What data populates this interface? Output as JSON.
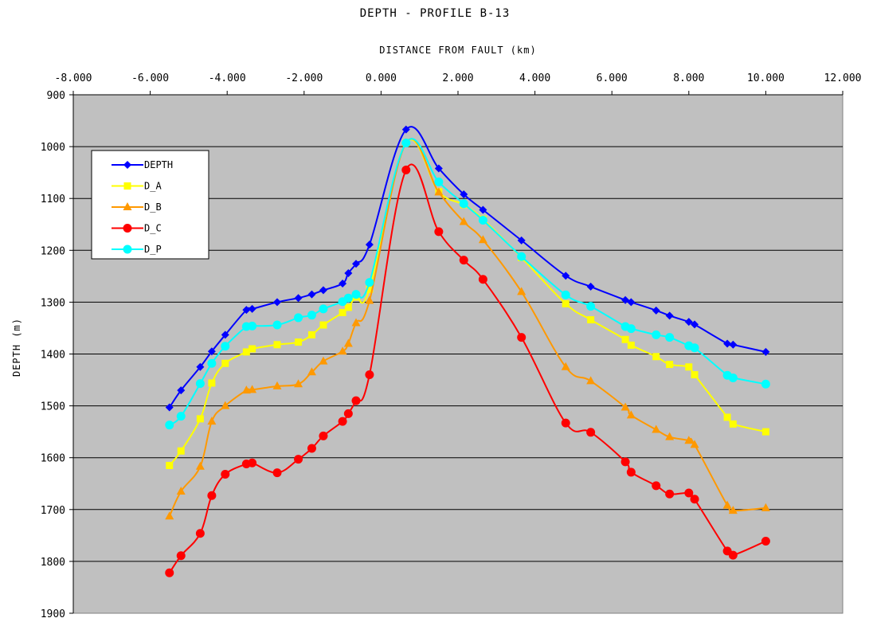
{
  "chart_data": {
    "type": "line",
    "title": "DEPTH - PROFILE B-13",
    "xlabel": "DISTANCE FROM FAULT (km)",
    "ylabel": "DEPTH (m)",
    "x_axis_position": "top",
    "y_inverted": true,
    "xlim": [
      -8,
      12
    ],
    "ylim": [
      900,
      1900
    ],
    "x_ticks": [
      -8,
      -6,
      -4,
      -2,
      0,
      2,
      4,
      6,
      8,
      10,
      12
    ],
    "x_tick_labels": [
      "-8.000",
      "-6.000",
      "-4.000",
      "-2.000",
      "0.000",
      "2.000",
      "4.000",
      "6.000",
      "8.000",
      "10.000",
      "12.000"
    ],
    "y_ticks": [
      900,
      1000,
      1100,
      1200,
      1300,
      1400,
      1500,
      1600,
      1700,
      1800,
      1900
    ],
    "y_tick_labels": [
      "900",
      "1000",
      "1100",
      "1200",
      "1300",
      "1400",
      "1500",
      "1600",
      "1700",
      "1800",
      "1900"
    ],
    "grid": "horizontal",
    "plot_background": "#c0c0c0",
    "legend": {
      "placement": "top-left"
    },
    "series": [
      {
        "name": "DEPTH",
        "color": "#0000ff",
        "marker": "diamond",
        "x": [
          -5.5,
          -5.2,
          -4.7,
          -4.4,
          -4.05,
          -3.5,
          -3.35,
          -2.7,
          -2.15,
          -1.8,
          -1.5,
          -1.0,
          -0.85,
          -0.65,
          -0.3,
          0.65,
          1.5,
          2.15,
          2.65,
          3.65,
          4.8,
          5.45,
          6.35,
          6.5,
          7.15,
          7.5,
          8.0,
          8.15,
          9.0,
          9.15,
          10.0
        ],
        "y": [
          1503,
          1470,
          1425,
          1395,
          1363,
          1315,
          1313,
          1300,
          1292,
          1285,
          1277,
          1264,
          1244,
          1226,
          1189,
          967,
          1042,
          1092,
          1122,
          1181,
          1249,
          1270,
          1296,
          1300,
          1316,
          1326,
          1338,
          1343,
          1380,
          1382,
          1396
        ]
      },
      {
        "name": "D_A",
        "color": "#ffff00",
        "marker": "square",
        "x": [
          -5.5,
          -5.2,
          -4.7,
          -4.4,
          -4.05,
          -3.5,
          -3.35,
          -2.7,
          -2.15,
          -1.8,
          -1.5,
          -1.0,
          -0.85,
          -0.65,
          -0.3,
          0.65,
          1.5,
          2.15,
          2.65,
          3.65,
          4.8,
          5.45,
          6.35,
          6.5,
          7.15,
          7.5,
          8.0,
          8.15,
          9.0,
          9.15,
          10.0
        ],
        "y": [
          1615,
          1587,
          1525,
          1456,
          1418,
          1396,
          1390,
          1382,
          1377,
          1363,
          1344,
          1320,
          1310,
          1290,
          1275,
          993,
          1087,
          1112,
          1140,
          1214,
          1303,
          1334,
          1372,
          1383,
          1405,
          1420,
          1425,
          1440,
          1522,
          1535,
          1550
        ]
      },
      {
        "name": "D_B",
        "color": "#ff9900",
        "marker": "triangle",
        "x": [
          -5.5,
          -5.2,
          -4.7,
          -4.4,
          -4.05,
          -3.5,
          -3.35,
          -2.7,
          -2.15,
          -1.8,
          -1.5,
          -1.0,
          -0.85,
          -0.65,
          -0.3,
          0.65,
          1.5,
          2.15,
          2.65,
          3.65,
          4.8,
          5.45,
          6.35,
          6.5,
          7.15,
          7.5,
          8.0,
          8.15,
          9.0,
          9.15,
          10.0
        ],
        "y": [
          1713,
          1665,
          1617,
          1530,
          1500,
          1470,
          1469,
          1462,
          1458,
          1435,
          1414,
          1395,
          1380,
          1340,
          1297,
          993,
          1088,
          1145,
          1180,
          1280,
          1425,
          1452,
          1503,
          1518,
          1546,
          1560,
          1567,
          1575,
          1692,
          1702,
          1697
        ]
      },
      {
        "name": "D_C",
        "color": "#ff0000",
        "marker": "circle",
        "x": [
          -5.5,
          -5.2,
          -4.7,
          -4.4,
          -4.05,
          -3.5,
          -3.35,
          -2.7,
          -2.15,
          -1.8,
          -1.5,
          -1.0,
          -0.85,
          -0.65,
          -0.3,
          0.65,
          1.5,
          2.15,
          2.65,
          3.65,
          4.8,
          5.45,
          6.35,
          6.5,
          7.15,
          7.5,
          8.0,
          8.15,
          9.0,
          9.15,
          10.0
        ],
        "y": [
          1822,
          1789,
          1746,
          1673,
          1632,
          1612,
          1610,
          1629,
          1603,
          1582,
          1558,
          1530,
          1515,
          1490,
          1440,
          1045,
          1164,
          1219,
          1256,
          1368,
          1533,
          1551,
          1608,
          1628,
          1654,
          1670,
          1668,
          1680,
          1780,
          1788,
          1761
        ]
      },
      {
        "name": "D_P",
        "color": "#00ffff",
        "marker": "circle",
        "x": [
          -5.5,
          -5.2,
          -4.7,
          -4.4,
          -4.05,
          -3.5,
          -3.35,
          -2.7,
          -2.15,
          -1.8,
          -1.5,
          -1.0,
          -0.85,
          -0.65,
          -0.3,
          0.65,
          1.5,
          2.15,
          2.65,
          3.65,
          4.8,
          5.45,
          6.35,
          6.5,
          7.15,
          7.5,
          8.0,
          8.15,
          9.0,
          9.15,
          10.0
        ],
        "y": [
          1537,
          1520,
          1457,
          1418,
          1385,
          1347,
          1346,
          1344,
          1330,
          1325,
          1313,
          1299,
          1292,
          1285,
          1262,
          993,
          1068,
          1110,
          1142,
          1212,
          1286,
          1308,
          1347,
          1351,
          1363,
          1368,
          1384,
          1388,
          1441,
          1446,
          1458
        ]
      }
    ]
  }
}
